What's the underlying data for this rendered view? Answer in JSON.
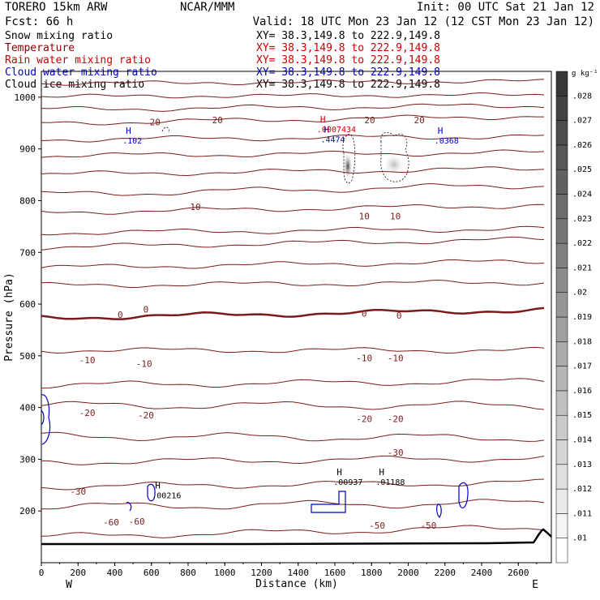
{
  "header": {
    "model": "TORERO  15km ARW",
    "center": "NCAR/MMM",
    "init": "Init: 00 UTC Sat 21 Jan 12",
    "fcst": "Fcst:   66 h",
    "valid": "Valid: 18 UTC Mon 23 Jan 12 (12 CST Mon 23 Jan 12)"
  },
  "legend": [
    {
      "label": "Snow mixing ratio",
      "xy": "XY=  38.3,149.8 to 222.9,149.8",
      "color": "#000000",
      "xycolor": "#000000"
    },
    {
      "label": "Temperature",
      "xy": "XY=  38.3,149.8 to 222.9,149.8",
      "color": "#8b0000",
      "xycolor": "#cc0000"
    },
    {
      "label": "Rain water mixing ratio",
      "xy": "XY=  38.3,149.8 to 222.9,149.8",
      "color": "#cc0000",
      "xycolor": "#cc0000"
    },
    {
      "label": "Cloud water mixing ratio",
      "xy": "XY=  38.3,149.8 to 222.9,149.8",
      "color": "#0000cc",
      "xycolor": "#0000cc"
    },
    {
      "label": "Cloud ice mixing ratio",
      "xy": "XY=  38.3,149.8 to 222.9,149.8",
      "color": "#000000",
      "xycolor": "#000000"
    }
  ],
  "chart_data": {
    "type": "cross-section",
    "xlabel": "Distance (km)",
    "ylabel": "Pressure (hPa)",
    "xlim": [
      0,
      2780
    ],
    "ylim": [
      1050,
      100
    ],
    "x_ticks": [
      0,
      200,
      400,
      600,
      800,
      1000,
      1200,
      1400,
      1600,
      1800,
      2000,
      2200,
      2400,
      2600
    ],
    "y_ticks": [
      200,
      300,
      400,
      500,
      600,
      700,
      800,
      900,
      1000
    ],
    "x_end_labels": {
      "left": "W",
      "right": "E"
    },
    "colorbar": {
      "unit": "g kg⁻¹",
      "ticks": [
        ".01",
        ".011",
        ".012",
        ".013",
        ".014",
        ".015",
        ".016",
        ".017",
        ".018",
        ".019",
        ".02",
        ".021",
        ".022",
        ".023",
        ".024",
        ".025",
        ".026",
        ".027",
        ".028"
      ]
    },
    "temperature_labels": [
      {
        "text": "-60",
        "x": 380,
        "p": 178
      },
      {
        "text": "-60",
        "x": 520,
        "p": 180
      },
      {
        "text": "-50",
        "x": 1830,
        "p": 172
      },
      {
        "text": "-50",
        "x": 2110,
        "p": 172
      },
      {
        "text": "-30",
        "x": 200,
        "p": 238
      },
      {
        "text": "-30",
        "x": 1930,
        "p": 313
      },
      {
        "text": "-20",
        "x": 250,
        "p": 390
      },
      {
        "text": "-20",
        "x": 570,
        "p": 385
      },
      {
        "text": "-20",
        "x": 1760,
        "p": 378
      },
      {
        "text": "-20",
        "x": 1930,
        "p": 378
      },
      {
        "text": "-10",
        "x": 250,
        "p": 492
      },
      {
        "text": "-10",
        "x": 560,
        "p": 485
      },
      {
        "text": "-10",
        "x": 1760,
        "p": 496
      },
      {
        "text": "-10",
        "x": 1930,
        "p": 496
      },
      {
        "text": "0",
        "x": 430,
        "p": 580
      },
      {
        "text": "0",
        "x": 570,
        "p": 590
      },
      {
        "text": "0",
        "x": 1760,
        "p": 582
      },
      {
        "text": "0",
        "x": 1950,
        "p": 578
      },
      {
        "text": "10",
        "x": 840,
        "p": 788
      },
      {
        "text": "10",
        "x": 1760,
        "p": 770
      },
      {
        "text": "10",
        "x": 1930,
        "p": 770
      },
      {
        "text": "20",
        "x": 620,
        "p": 952
      },
      {
        "text": "20",
        "x": 960,
        "p": 956
      },
      {
        "text": "20",
        "x": 1790,
        "p": 956
      },
      {
        "text": "20",
        "x": 2060,
        "p": 956
      }
    ],
    "maxima": [
      {
        "mark": "H",
        "value": ".00216",
        "x": 620,
        "p": 234,
        "color": "#000000"
      },
      {
        "mark": "H",
        "value": ".00937",
        "x": 1610,
        "p": 260,
        "color": "#000000"
      },
      {
        "mark": "H",
        "value": ".01188",
        "x": 1840,
        "p": 260,
        "color": "#000000"
      },
      {
        "mark": "H",
        "value": ".102",
        "x": 460,
        "p": 920,
        "color": "#0000cc"
      },
      {
        "mark": "H",
        "value": ".4474",
        "x": 1540,
        "p": 922,
        "color": "#0000cc"
      },
      {
        "mark": "H",
        "value": ".0007434",
        "x": 1520,
        "p": 942,
        "color": "#cc0000"
      },
      {
        "mark": "H",
        "value": ".0368",
        "x": 2160,
        "p": 920,
        "color": "#0000cc"
      }
    ]
  }
}
